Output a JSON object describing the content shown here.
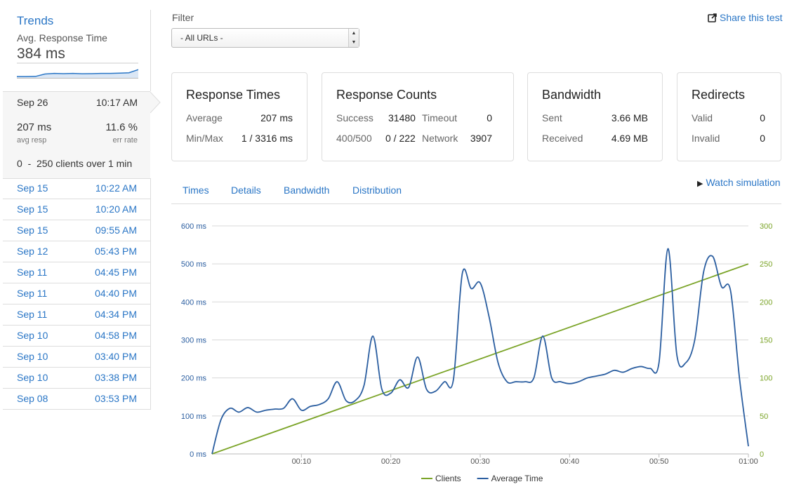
{
  "sidebar": {
    "title": "Trends",
    "metric_label": "Avg. Response Time",
    "metric_value": "384 ms",
    "sparkline": [
      0.05,
      0.05,
      0.06,
      0.25,
      0.3,
      0.28,
      0.3,
      0.27,
      0.28,
      0.3,
      0.3,
      0.32,
      0.35,
      0.6
    ],
    "current": {
      "date": "Sep 26",
      "time": "10:17 AM",
      "avg_resp": "207 ms",
      "avg_resp_label": "avg resp",
      "err_rate": "11.6 %",
      "err_rate_label": "err rate",
      "clients_text": "0  -  250 clients over 1 min"
    },
    "history": [
      {
        "date": "Sep 15",
        "time": "10:22 AM"
      },
      {
        "date": "Sep 15",
        "time": "10:20 AM"
      },
      {
        "date": "Sep 15",
        "time": "09:55 AM"
      },
      {
        "date": "Sep 12",
        "time": "05:43 PM"
      },
      {
        "date": "Sep 11",
        "time": "04:45 PM"
      },
      {
        "date": "Sep 11",
        "time": "04:40 PM"
      },
      {
        "date": "Sep 11",
        "time": "04:34 PM"
      },
      {
        "date": "Sep 10",
        "time": "04:58 PM"
      },
      {
        "date": "Sep 10",
        "time": "03:40 PM"
      },
      {
        "date": "Sep 10",
        "time": "03:38 PM"
      },
      {
        "date": "Sep 08",
        "time": "03:53 PM"
      }
    ]
  },
  "filter": {
    "label": "Filter",
    "selected": "- All URLs -"
  },
  "share_label": "Share this test",
  "cards": {
    "response_times": {
      "title": "Response Times",
      "average_label": "Average",
      "average": "207 ms",
      "minmax_label": "Min/Max",
      "minmax": "1 / 3316 ms"
    },
    "response_counts": {
      "title": "Response Counts",
      "success_label": "Success",
      "success": "31480",
      "timeout_label": "Timeout",
      "timeout": "0",
      "err_label": "400/500",
      "err": "0 / 222",
      "network_label": "Network",
      "network": "3907"
    },
    "bandwidth": {
      "title": "Bandwidth",
      "sent_label": "Sent",
      "sent": "3.66 MB",
      "received_label": "Received",
      "received": "4.69 MB"
    },
    "redirects": {
      "title": "Redirects",
      "valid_label": "Valid",
      "valid": "0",
      "invalid_label": "Invalid",
      "invalid": "0"
    }
  },
  "tabs": [
    "Times",
    "Details",
    "Bandwidth",
    "Distribution"
  ],
  "watch_label": "Watch simulation",
  "chart_data": {
    "type": "line",
    "x_ticks": [
      "00:10",
      "00:20",
      "00:30",
      "00:40",
      "00:50",
      "01:00"
    ],
    "x_range": [
      0,
      60
    ],
    "y_left_ticks": [
      "0 ms",
      "100 ms",
      "200 ms",
      "300 ms",
      "400 ms",
      "500 ms",
      "600 ms"
    ],
    "y_left_range": [
      0,
      600
    ],
    "y_right_ticks": [
      "0",
      "50",
      "100",
      "150",
      "200",
      "250",
      "300"
    ],
    "y_right_range": [
      0,
      300
    ],
    "grid": true,
    "legend_position": "bottom",
    "series": [
      {
        "name": "Clients",
        "axis": "right",
        "color": "#7ba428",
        "x": [
          0,
          60
        ],
        "values": [
          0,
          250
        ]
      },
      {
        "name": "Average Time",
        "axis": "left",
        "color": "#2b5ea0",
        "x": [
          0,
          1,
          2,
          3,
          4,
          5,
          6,
          7,
          8,
          9,
          10,
          11,
          12,
          13,
          14,
          15,
          16,
          17,
          18,
          19,
          20,
          21,
          22,
          23,
          24,
          25,
          26,
          27,
          28,
          29,
          30,
          31,
          32,
          33,
          34,
          35,
          36,
          37,
          38,
          39,
          40,
          41,
          42,
          43,
          44,
          45,
          46,
          47,
          48,
          49,
          50,
          51,
          52,
          53,
          54,
          55,
          56,
          57,
          58,
          59,
          60
        ],
        "values": [
          0,
          90,
          120,
          110,
          122,
          110,
          115,
          118,
          120,
          145,
          115,
          125,
          130,
          145,
          190,
          140,
          140,
          180,
          310,
          170,
          160,
          195,
          175,
          255,
          170,
          165,
          190,
          195,
          475,
          435,
          450,
          360,
          240,
          190,
          190,
          190,
          200,
          310,
          200,
          190,
          185,
          190,
          200,
          205,
          210,
          220,
          215,
          225,
          230,
          225,
          240,
          540,
          260,
          240,
          300,
          480,
          520,
          440,
          430,
          200,
          20
        ]
      }
    ]
  }
}
